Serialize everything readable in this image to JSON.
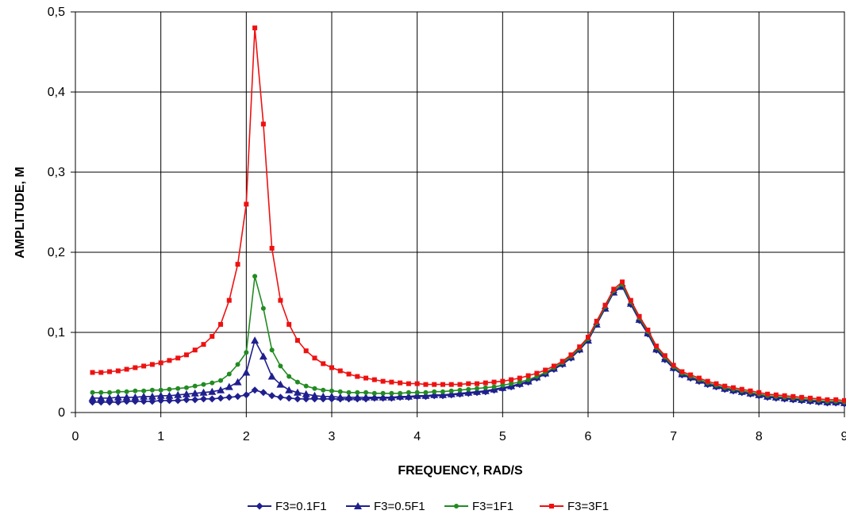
{
  "chart_data": {
    "type": "line",
    "xlabel": "FREQUENCY, RAD/S",
    "ylabel": "AMPLITUDE, M",
    "xlim": [
      0,
      9
    ],
    "ylim": [
      0,
      0.5
    ],
    "x_ticks": [
      "0",
      "1",
      "2",
      "3",
      "4",
      "5",
      "6",
      "7",
      "8",
      "9"
    ],
    "y_ticks": [
      "0",
      "0,1",
      "0,2",
      "0,3",
      "0,4",
      "0,5"
    ],
    "grid": true,
    "legend_position": "bottom",
    "x": [
      0.2,
      0.3,
      0.4,
      0.5,
      0.6,
      0.7,
      0.8,
      0.9,
      1.0,
      1.1,
      1.2,
      1.3,
      1.4,
      1.5,
      1.6,
      1.7,
      1.8,
      1.9,
      2.0,
      2.1,
      2.2,
      2.3,
      2.4,
      2.5,
      2.6,
      2.7,
      2.8,
      2.9,
      3.0,
      3.1,
      3.2,
      3.3,
      3.4,
      3.5,
      3.6,
      3.7,
      3.8,
      3.9,
      4.0,
      4.1,
      4.2,
      4.3,
      4.4,
      4.5,
      4.6,
      4.7,
      4.8,
      4.9,
      5.0,
      5.1,
      5.2,
      5.3,
      5.4,
      5.5,
      5.6,
      5.7,
      5.8,
      5.9,
      6.0,
      6.1,
      6.2,
      6.3,
      6.4,
      6.5,
      6.6,
      6.7,
      6.8,
      6.9,
      7.0,
      7.1,
      7.2,
      7.3,
      7.4,
      7.5,
      7.6,
      7.7,
      7.8,
      7.9,
      8.0,
      8.1,
      8.2,
      8.3,
      8.4,
      8.5,
      8.6,
      8.7,
      8.8,
      8.9,
      9.0
    ],
    "series": [
      {
        "name": "F3=0.1F1",
        "color": "#1f1f8f",
        "marker": "diamond",
        "values": [
          0.013,
          0.013,
          0.013,
          0.013,
          0.014,
          0.014,
          0.014,
          0.014,
          0.015,
          0.015,
          0.015,
          0.016,
          0.016,
          0.017,
          0.017,
          0.018,
          0.019,
          0.02,
          0.022,
          0.028,
          0.025,
          0.021,
          0.019,
          0.018,
          0.017,
          0.017,
          0.017,
          0.017,
          0.017,
          0.017,
          0.017,
          0.017,
          0.017,
          0.018,
          0.018,
          0.018,
          0.019,
          0.019,
          0.02,
          0.02,
          0.021,
          0.021,
          0.022,
          0.023,
          0.024,
          0.025,
          0.026,
          0.028,
          0.03,
          0.032,
          0.035,
          0.038,
          0.043,
          0.048,
          0.054,
          0.06,
          0.068,
          0.078,
          0.09,
          0.11,
          0.13,
          0.15,
          0.158,
          0.135,
          0.115,
          0.098,
          0.078,
          0.066,
          0.055,
          0.047,
          0.043,
          0.039,
          0.035,
          0.032,
          0.029,
          0.027,
          0.025,
          0.023,
          0.021,
          0.019,
          0.018,
          0.017,
          0.016,
          0.015,
          0.014,
          0.013,
          0.012,
          0.012,
          0.011
        ]
      },
      {
        "name": "F3=0.5F1",
        "color": "#1f1f8f",
        "marker": "triangle",
        "values": [
          0.018,
          0.018,
          0.018,
          0.019,
          0.019,
          0.019,
          0.02,
          0.02,
          0.021,
          0.021,
          0.022,
          0.023,
          0.024,
          0.025,
          0.026,
          0.028,
          0.032,
          0.038,
          0.05,
          0.09,
          0.07,
          0.045,
          0.035,
          0.028,
          0.025,
          0.023,
          0.021,
          0.02,
          0.02,
          0.019,
          0.019,
          0.019,
          0.019,
          0.019,
          0.019,
          0.019,
          0.02,
          0.02,
          0.021,
          0.021,
          0.022,
          0.022,
          0.023,
          0.024,
          0.025,
          0.026,
          0.027,
          0.029,
          0.031,
          0.033,
          0.036,
          0.039,
          0.044,
          0.049,
          0.055,
          0.061,
          0.069,
          0.079,
          0.09,
          0.11,
          0.13,
          0.15,
          0.157,
          0.136,
          0.116,
          0.099,
          0.079,
          0.067,
          0.056,
          0.048,
          0.044,
          0.04,
          0.036,
          0.033,
          0.03,
          0.028,
          0.026,
          0.024,
          0.022,
          0.02,
          0.019,
          0.018,
          0.017,
          0.016,
          0.015,
          0.014,
          0.013,
          0.013,
          0.012
        ]
      },
      {
        "name": "F3=1F1",
        "color": "#228b22",
        "marker": "circle",
        "values": [
          0.025,
          0.025,
          0.025,
          0.026,
          0.026,
          0.027,
          0.027,
          0.028,
          0.028,
          0.029,
          0.03,
          0.031,
          0.033,
          0.035,
          0.037,
          0.04,
          0.048,
          0.06,
          0.075,
          0.17,
          0.13,
          0.078,
          0.058,
          0.045,
          0.038,
          0.033,
          0.03,
          0.028,
          0.027,
          0.026,
          0.025,
          0.025,
          0.025,
          0.024,
          0.024,
          0.024,
          0.024,
          0.025,
          0.025,
          0.025,
          0.026,
          0.026,
          0.027,
          0.028,
          0.029,
          0.03,
          0.031,
          0.032,
          0.034,
          0.036,
          0.038,
          0.041,
          0.045,
          0.05,
          0.056,
          0.062,
          0.07,
          0.08,
          0.092,
          0.112,
          0.132,
          0.152,
          0.16,
          0.138,
          0.118,
          0.101,
          0.081,
          0.069,
          0.057,
          0.049,
          0.045,
          0.041,
          0.037,
          0.034,
          0.031,
          0.029,
          0.027,
          0.025,
          0.023,
          0.021,
          0.02,
          0.019,
          0.018,
          0.017,
          0.016,
          0.015,
          0.014,
          0.014,
          0.013
        ]
      },
      {
        "name": "F3=3F1",
        "color": "#ee1111",
        "marker": "square",
        "values": [
          0.05,
          0.05,
          0.051,
          0.052,
          0.054,
          0.056,
          0.058,
          0.06,
          0.062,
          0.065,
          0.068,
          0.072,
          0.078,
          0.085,
          0.095,
          0.11,
          0.14,
          0.185,
          0.26,
          0.48,
          0.36,
          0.205,
          0.14,
          0.11,
          0.09,
          0.077,
          0.068,
          0.061,
          0.056,
          0.052,
          0.048,
          0.045,
          0.043,
          0.041,
          0.039,
          0.038,
          0.037,
          0.036,
          0.036,
          0.035,
          0.035,
          0.035,
          0.035,
          0.035,
          0.036,
          0.036,
          0.037,
          0.038,
          0.039,
          0.041,
          0.043,
          0.046,
          0.049,
          0.053,
          0.058,
          0.064,
          0.072,
          0.082,
          0.094,
          0.114,
          0.134,
          0.154,
          0.163,
          0.14,
          0.12,
          0.103,
          0.083,
          0.071,
          0.059,
          0.051,
          0.047,
          0.043,
          0.039,
          0.036,
          0.033,
          0.031,
          0.029,
          0.027,
          0.025,
          0.023,
          0.022,
          0.021,
          0.02,
          0.019,
          0.018,
          0.017,
          0.016,
          0.016,
          0.015
        ]
      }
    ]
  }
}
